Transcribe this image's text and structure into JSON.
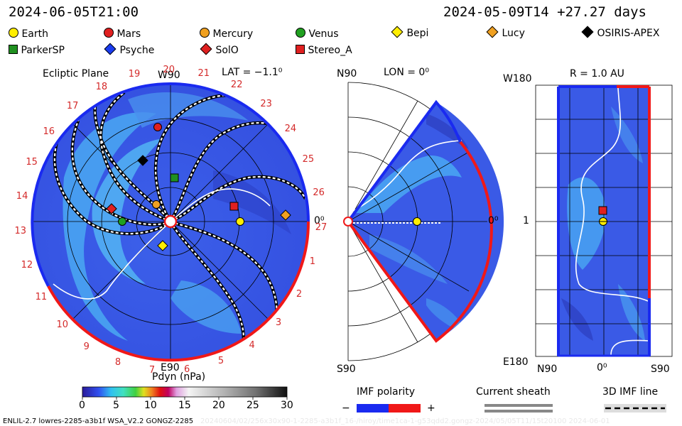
{
  "header": {
    "left_time": "2024-06-05T21:00",
    "right_time": "2024-05-09T14 +27.27 days"
  },
  "legend": [
    {
      "label": "Earth",
      "marker": "circle",
      "color": "#ffee00"
    },
    {
      "label": "Mars",
      "marker": "circle",
      "color": "#e02020"
    },
    {
      "label": "Mercury",
      "marker": "circle",
      "color": "#f0a020"
    },
    {
      "label": "Venus",
      "marker": "circle",
      "color": "#20a020"
    },
    {
      "label": "Bepi",
      "marker": "diamond",
      "color": "#ffee00"
    },
    {
      "label": "Lucy",
      "marker": "diamond",
      "color": "#f0a020"
    },
    {
      "label": "OSIRIS-APEX",
      "marker": "diamond",
      "color": "#000000"
    },
    {
      "label": "ParkerSP",
      "marker": "square",
      "color": "#209020"
    },
    {
      "label": "Psyche",
      "marker": "diamond",
      "color": "#1a3cf0"
    },
    {
      "label": "SolO",
      "marker": "diamond",
      "color": "#e02020"
    },
    {
      "label": "Stereo_A",
      "marker": "square",
      "color": "#e02020"
    }
  ],
  "panel_ecliptic": {
    "title": "Ecliptic Plane",
    "lat_label": "LAT = −1.1⁰",
    "top_label": "W90",
    "bottom_label": "E90",
    "right_label": "0⁰",
    "day_ticks": [
      "19",
      "20",
      "21",
      "22",
      "23",
      "24",
      "25",
      "26",
      "27",
      "1",
      "2",
      "3",
      "4",
      "5",
      "6",
      "7",
      "8",
      "9",
      "10",
      "11",
      "12",
      "13",
      "14",
      "15",
      "16",
      "17",
      "18"
    ]
  },
  "panel_meridional": {
    "top_label": "N90",
    "lon_label": "LON = 0⁰",
    "bottom_label": "S90",
    "right_label": "0⁰"
  },
  "panel_radial": {
    "title": "R = 1.0 AU",
    "top_left": "W180",
    "mid_left": "1",
    "bottom_left": "E180",
    "x_left": "N90",
    "x_mid": "0⁰",
    "x_right": "S90"
  },
  "colorbar": {
    "title": "Pdyn (nPa)",
    "ticks": [
      "0",
      "5",
      "10",
      "15",
      "20",
      "25",
      "30"
    ]
  },
  "keys": {
    "imf_title": "IMF polarity",
    "imf_minus": "−",
    "imf_plus": "+",
    "sheath_title": "Current sheath",
    "line_title": "3D IMF line"
  },
  "footer": {
    "left": "ENLIL-2.7 lowres-2285-a3b1f WSA_V2.2 GONGZ-2285",
    "right": "20240604/02/256x30x90-1-2285-a3b1f_16-/hiroy/time1ca-1-g53qdd2.gongz-2024/05/05T11/15t20100     2024-06-01"
  },
  "colors": {
    "plasma_bg": "#3a5ae6",
    "plasma_light": "#49a3f2",
    "plasma_dark": "#2a38b8",
    "imf_negative": "#1a2af0",
    "imf_positive": "#f01818",
    "tick_red": "#d42a2a"
  }
}
